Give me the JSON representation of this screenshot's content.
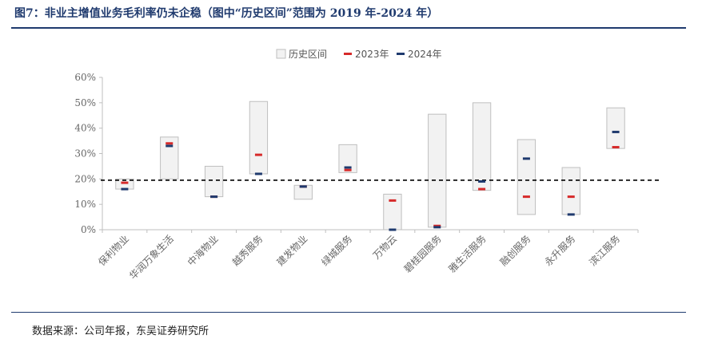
{
  "header": {
    "title": "图7：非业主增值业务毛利率仍未企稳（图中“历史区间”范围为 2019 年-2024 年）"
  },
  "footer": {
    "source": "数据来源：公司年报，东吴证券研究所"
  },
  "colors": {
    "range_fill": "#f2f2f2",
    "range_stroke": "#bfbfbf",
    "y2023": "#d62a2a",
    "y2024": "#1f3a6e",
    "dashed_line": "#000000"
  },
  "chart_data": {
    "type": "range-bar",
    "title": "",
    "xlabel": "",
    "ylabel": "",
    "ylim": [
      0,
      60
    ],
    "yticks": [
      "0%",
      "10%",
      "20%",
      "30%",
      "40%",
      "50%",
      "60%"
    ],
    "grid": false,
    "legend_position": "top-center",
    "legend": [
      "历史区间",
      "2023年",
      "2024年"
    ],
    "reference_line": 19.5,
    "categories": [
      "保利物业",
      "华润万象生活",
      "中海物业",
      "越秀服务",
      "建发物业",
      "绿城服务",
      "万物云",
      "碧桂园服务",
      "雅生活服务",
      "融创服务",
      "永升服务",
      "滨江服务"
    ],
    "range_low": [
      16,
      20,
      13,
      22,
      12,
      22.5,
      0,
      1,
      15.5,
      6,
      6,
      32
    ],
    "range_high": [
      20,
      36.5,
      25,
      50.5,
      17.5,
      33.5,
      14,
      45.5,
      50,
      35.5,
      24.5,
      48
    ],
    "series": [
      {
        "name": "2023年",
        "values": [
          18.5,
          34,
          13,
          29.5,
          17,
          23.5,
          11.5,
          1.5,
          16,
          13,
          13,
          32.5
        ]
      },
      {
        "name": "2024年",
        "values": [
          16,
          33,
          13,
          22,
          17,
          24.5,
          0,
          1,
          19,
          28,
          6,
          38.5
        ]
      }
    ]
  }
}
